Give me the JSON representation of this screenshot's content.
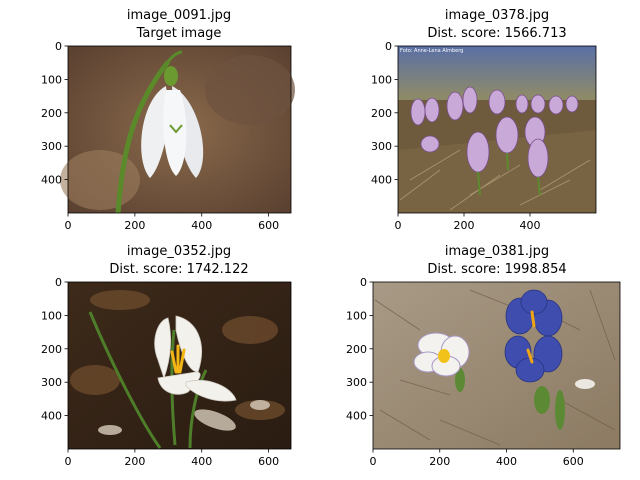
{
  "chart_data": [
    {
      "type": "image",
      "title_lines": [
        "image_0091.jpg",
        "Target image"
      ],
      "xticks": [
        0,
        200,
        400,
        600
      ],
      "yticks": [
        0,
        100,
        200,
        300,
        400
      ],
      "xlim": [
        0,
        667
      ],
      "ylim": [
        500,
        0
      ],
      "image_subject": "white snowdrop flower"
    },
    {
      "type": "image",
      "title_lines": [
        "image_0378.jpg",
        "Dist. score: 1566.713"
      ],
      "xticks": [
        0,
        200,
        400
      ],
      "yticks": [
        0,
        100,
        200,
        300,
        400
      ],
      "xlim": [
        0,
        600
      ],
      "ylim": [
        500,
        0
      ],
      "image_subject": "purple striped crocuses on dry grass"
    },
    {
      "type": "image",
      "title_lines": [
        "image_0352.jpg",
        "Dist. score: 1742.122"
      ],
      "xticks": [
        0,
        200,
        400,
        600
      ],
      "yticks": [
        0,
        100,
        200,
        300,
        400
      ],
      "xlim": [
        0,
        667
      ],
      "ylim": [
        500,
        0
      ],
      "image_subject": "white crocus with yellow stamens"
    },
    {
      "type": "image",
      "title_lines": [
        "image_0381.jpg",
        "Dist. score: 1998.854"
      ],
      "xticks": [
        0,
        200,
        400,
        600
      ],
      "yticks": [
        0,
        100,
        200,
        300,
        400
      ],
      "xlim": [
        0,
        740
      ],
      "ylim": [
        500,
        0
      ],
      "image_subject": "white and blue crocuses on dry grass"
    }
  ],
  "colors": {
    "axis": "#000000",
    "background": "#ffffff"
  }
}
